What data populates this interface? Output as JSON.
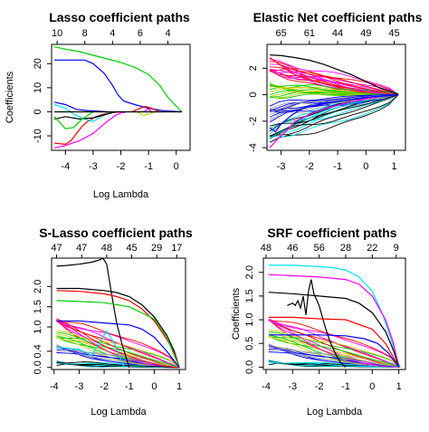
{
  "palette": [
    "#000000",
    "#ff0000",
    "#00cd00",
    "#0000ff",
    "#00e5ee",
    "#ff00ff",
    "#cdcd00",
    "#9e9e9e"
  ],
  "chart_data": [
    {
      "type": "line",
      "title": "Lasso coefficient paths",
      "xlabel": "Log Lambda",
      "ylabel": "Coefficients",
      "xlim": [
        -4.5,
        0.5
      ],
      "ylim": [
        -16,
        28
      ],
      "xticks": [
        -4,
        -3,
        -2,
        -1,
        0
      ],
      "xtick_labels": [
        "-4",
        "-3",
        "-2",
        "-1",
        "0"
      ],
      "yticks": [
        -10,
        0,
        10,
        20
      ],
      "ytick_labels": [
        "-10",
        "0",
        "10",
        "20"
      ],
      "top_ticks": [
        -4.3,
        -3.3,
        -2.3,
        -1.3,
        -0.3
      ],
      "top_labels": [
        "10",
        "8",
        "4",
        "6",
        "4"
      ],
      "grid": false,
      "series": [
        {
          "color": "#00cd00",
          "x": [
            -4.4,
            -4.0,
            -3.5,
            -3.0,
            -2.5,
            -2.0,
            -1.5,
            -1.0,
            -0.6,
            -0.3,
            0.2
          ],
          "y": [
            27,
            26,
            25,
            23.5,
            22,
            20.5,
            18.5,
            15.5,
            11,
            6,
            0
          ]
        },
        {
          "color": "#0000ff",
          "x": [
            -4.4,
            -3.5,
            -3.3,
            -3.0,
            -2.6,
            -2.3,
            -2.1,
            -1.9,
            -1.5,
            -1.0,
            -0.5,
            0.2
          ],
          "y": [
            21.5,
            21.5,
            21.5,
            20,
            16,
            11,
            7,
            4.5,
            3,
            1.5,
            0.5,
            0
          ]
        },
        {
          "color": "#ff00ff",
          "x": [
            -4.4,
            -4.0,
            -3.5,
            -3.0,
            -2.6,
            -2.2,
            -2.0,
            -1.8
          ],
          "y": [
            -15,
            -14,
            -12,
            -9,
            -5,
            -1.5,
            -0.5,
            0
          ]
        },
        {
          "color": "#ff0000",
          "x": [
            -4.4,
            -4.0,
            -3.8,
            -3.6,
            -3.4,
            -3.2,
            -2.9,
            -2.5,
            -2.0
          ],
          "y": [
            -13,
            -13.5,
            -12,
            -9,
            -6,
            -4,
            -2,
            -0.5,
            0
          ]
        },
        {
          "color": "#00e5ee",
          "x": [
            -4.4,
            -4.0,
            -3.7,
            -3.3,
            -3.0,
            -2.7,
            -2.4
          ],
          "y": [
            3,
            1.5,
            -1,
            -3,
            -4,
            -2,
            0
          ]
        },
        {
          "color": "#000000",
          "x": [
            -4.4,
            -4.0,
            -3.5,
            -3.0,
            -2.5,
            -2.2
          ],
          "y": [
            -3,
            -2,
            -3,
            -2.5,
            -1,
            0
          ]
        },
        {
          "color": "#0000ff",
          "x": [
            -4.4,
            -4.0,
            -3.6,
            -3.2,
            -2.8,
            -2.5
          ],
          "y": [
            4,
            3,
            1,
            0.5,
            0.3,
            0
          ]
        },
        {
          "color": "#00cd00",
          "x": [
            -4.4,
            -4.0,
            -3.7,
            -3.4,
            -3.0
          ],
          "y": [
            -2,
            -7,
            -6.5,
            -3,
            0
          ]
        },
        {
          "color": "#ff0000",
          "x": [
            -1.6,
            -1.3,
            -1.1,
            -0.9,
            -0.6
          ],
          "y": [
            0,
            1.5,
            2.2,
            1.5,
            0
          ]
        },
        {
          "color": "#cdcd00",
          "x": [
            -1.4,
            -1.2,
            -1.0,
            -0.8
          ],
          "y": [
            0,
            -1.5,
            -1,
            0
          ]
        },
        {
          "color": "#ff00ff",
          "x": [
            -1.2,
            -1.0,
            -0.9
          ],
          "y": [
            0,
            1.2,
            0
          ]
        },
        {
          "color": "#000000",
          "x": [
            -4.4,
            0.2
          ],
          "y": [
            0,
            0
          ]
        }
      ]
    },
    {
      "type": "line",
      "title": "Elastic Net coefficient paths",
      "xlabel": "",
      "ylabel": "",
      "xlim": [
        -3.5,
        1.4
      ],
      "ylim": [
        -4.2,
        3.8
      ],
      "xticks": [
        -3,
        -2,
        -1,
        0,
        1
      ],
      "xtick_labels": [
        "-3",
        "-2",
        "-1",
        "0",
        "1"
      ],
      "yticks": [
        -4,
        -2,
        0,
        2
      ],
      "ytick_labels": [
        "-4",
        "-2",
        "0",
        "2"
      ],
      "top_ticks": [
        -3.0,
        -2.0,
        -1.0,
        0.0,
        1.0
      ],
      "top_labels": [
        "65",
        "61",
        "44",
        "49",
        "45"
      ],
      "grid": false,
      "fan": {
        "count": 60,
        "start_x": -3.4,
        "end_x": 1.15,
        "hi": 3.3,
        "lo": -3.6
      },
      "series": [
        {
          "color": "#000000",
          "x": [
            -3.4,
            -3.0,
            -2.5,
            -2.0,
            -1.5,
            -1.0,
            -0.5,
            0.0,
            0.5,
            1.15
          ],
          "y": [
            3.0,
            2.95,
            2.8,
            2.6,
            2.3,
            1.9,
            1.5,
            1.0,
            0.5,
            0.05
          ]
        },
        {
          "color": "#ff00ff",
          "x": [
            -3.4,
            -3.1,
            -2.8,
            -2.5,
            -2.0,
            -1.5,
            -1.0,
            -0.5,
            0.0,
            0.5,
            1.15
          ],
          "y": [
            -4.0,
            -3.3,
            -2.7,
            -2.0,
            -1.5,
            -1.1,
            -0.8,
            -0.5,
            -0.3,
            -0.15,
            0.0
          ]
        },
        {
          "color": "#0000ff",
          "x": [
            -3.4,
            -3.2,
            -3.0,
            -2.6,
            -2.2,
            -1.8,
            -1.0,
            0.0,
            1.15
          ],
          "y": [
            -2.5,
            -2.8,
            -2.2,
            -1.5,
            -1.0,
            -0.8,
            -0.5,
            -0.2,
            0.0
          ]
        }
      ]
    },
    {
      "type": "line",
      "title": "S-Lasso coefficient paths",
      "xlabel": "Log Lambda",
      "ylabel": "",
      "xlim": [
        -4.1,
        1.25
      ],
      "ylim": [
        -0.05,
        2.7
      ],
      "xticks": [
        -4,
        -3,
        -2,
        -1,
        0,
        1
      ],
      "xtick_labels": [
        "-4",
        "-3",
        "-2",
        "-1",
        "0",
        "1"
      ],
      "yticks": [
        0.0,
        0.4,
        1.0,
        1.5,
        2.0
      ],
      "ytick_labels": [
        "0.0",
        "0.4",
        "1.0",
        "1.5",
        "2.0"
      ],
      "top_ticks": [
        -3.9,
        -2.9,
        -1.9,
        -0.9,
        0.1,
        0.9
      ],
      "top_labels": [
        "47",
        "47",
        "48",
        "45",
        "29",
        "17"
      ],
      "grid": false,
      "fan": {
        "count": 34,
        "start_x": -3.9,
        "end_x": 1.0,
        "hi": 1.45,
        "lo": 0.05
      },
      "series": [
        {
          "color": "#000000",
          "x": [
            -3.9,
            -3.5,
            -3.0,
            -2.5,
            -2.2,
            -2.05,
            -1.9,
            -1.7,
            -1.5,
            -1.3,
            -1.1,
            -1.0
          ],
          "y": [
            2.5,
            2.52,
            2.55,
            2.6,
            2.65,
            2.7,
            2.55,
            1.8,
            1.1,
            0.6,
            0.2,
            0.0
          ]
        },
        {
          "color": "#000000",
          "x": [
            -3.9,
            -3.0,
            -2.0,
            -1.5,
            -1.0,
            -0.5,
            0.0,
            0.5,
            0.8,
            1.0
          ],
          "y": [
            1.95,
            1.95,
            1.9,
            1.85,
            1.75,
            1.55,
            1.25,
            0.8,
            0.4,
            0.0
          ]
        },
        {
          "color": "#ff0000",
          "x": [
            -3.9,
            -3.0,
            -2.0,
            -1.5,
            -1.0,
            -0.5,
            0.0,
            0.5,
            0.8,
            1.0
          ],
          "y": [
            1.9,
            1.88,
            1.82,
            1.75,
            1.65,
            1.45,
            1.15,
            0.7,
            0.35,
            0.0
          ]
        },
        {
          "color": "#00cd00",
          "x": [
            -3.9,
            -3.0,
            -2.0,
            -1.0,
            0.0,
            0.5,
            1.0
          ],
          "y": [
            1.65,
            1.63,
            1.6,
            1.5,
            1.2,
            0.75,
            0.0
          ]
        },
        {
          "color": "#0000ff",
          "x": [
            -3.9,
            -3.0,
            -2.0,
            -1.0,
            -0.5,
            0.0,
            0.5,
            1.0
          ],
          "y": [
            1.15,
            1.15,
            1.1,
            1.05,
            0.95,
            0.75,
            0.4,
            0.0
          ]
        },
        {
          "color": "#00e5ee",
          "x": [
            -3.9,
            -3.0,
            -2.5,
            -2.2,
            -1.9,
            -1.6,
            -1.2
          ],
          "y": [
            0.5,
            0.45,
            0.3,
            0.6,
            0.9,
            0.6,
            0.0
          ]
        }
      ]
    },
    {
      "type": "line",
      "title": "SRF coefficient paths",
      "xlabel": "Log Lambda",
      "ylabel": "Coefficients",
      "xlim": [
        -4.1,
        1.25
      ],
      "ylim": [
        -0.05,
        2.3
      ],
      "xticks": [
        -4,
        -3,
        -2,
        -1,
        0,
        1
      ],
      "xtick_labels": [
        "-4",
        "-3",
        "-2",
        "-1",
        "0",
        "1"
      ],
      "yticks": [
        0.0,
        0.5,
        1.0,
        1.5,
        2.0
      ],
      "ytick_labels": [
        "0.0",
        "0.5",
        "1.0",
        "1.5",
        "2.0"
      ],
      "top_ticks": [
        -4.0,
        -3.0,
        -2.0,
        -1.0,
        0.0,
        0.9
      ],
      "top_labels": [
        "48",
        "46",
        "56",
        "28",
        "22",
        "9"
      ],
      "grid": false,
      "fan": {
        "count": 32,
        "start_x": -3.9,
        "end_x": 1.05,
        "hi": 1.25,
        "lo": 0.05
      },
      "series": [
        {
          "color": "#00e5ee",
          "x": [
            -3.9,
            -3.0,
            -2.0,
            -1.5,
            -1.0,
            -0.5,
            0.0,
            0.4,
            0.7,
            0.9,
            1.05
          ],
          "y": [
            2.15,
            2.15,
            2.12,
            2.1,
            2.05,
            1.9,
            1.6,
            1.1,
            0.6,
            0.2,
            0.0
          ]
        },
        {
          "color": "#ff00ff",
          "x": [
            -3.9,
            -3.0,
            -2.0,
            -1.0,
            -0.5,
            0.0,
            0.5,
            0.8,
            1.0
          ],
          "y": [
            1.95,
            1.93,
            1.9,
            1.85,
            1.75,
            1.5,
            1.0,
            0.5,
            0.0
          ]
        },
        {
          "color": "#000000",
          "x": [
            -3.9,
            -3.0,
            -2.0,
            -1.0,
            -0.5,
            0.0,
            0.5,
            0.8,
            1.0
          ],
          "y": [
            1.58,
            1.55,
            1.5,
            1.45,
            1.35,
            1.15,
            0.75,
            0.35,
            0.0
          ]
        },
        {
          "color": "#000000",
          "x": [
            -3.2,
            -3.0,
            -2.9,
            -2.8,
            -2.7,
            -2.6,
            -2.5,
            -2.4,
            -2.3,
            -2.2,
            -2.0,
            -1.8,
            -1.6,
            -1.4,
            -1.2,
            -1.0
          ],
          "y": [
            1.3,
            1.35,
            1.3,
            1.4,
            1.25,
            1.5,
            1.1,
            1.6,
            1.85,
            1.55,
            1.3,
            0.9,
            0.55,
            0.3,
            0.1,
            0.0
          ]
        },
        {
          "color": "#ff0000",
          "x": [
            -3.9,
            -3.0,
            -2.0,
            -1.0,
            0.0,
            0.5,
            1.0
          ],
          "y": [
            1.05,
            1.05,
            1.02,
            1.0,
            0.8,
            0.5,
            0.0
          ]
        },
        {
          "color": "#0000ff",
          "x": [
            -3.9,
            -3.0,
            -2.0,
            -1.0,
            -0.3,
            0.2,
            0.6,
            1.0
          ],
          "y": [
            0.68,
            0.68,
            0.68,
            0.66,
            0.6,
            0.5,
            0.3,
            0.0
          ]
        }
      ]
    }
  ]
}
